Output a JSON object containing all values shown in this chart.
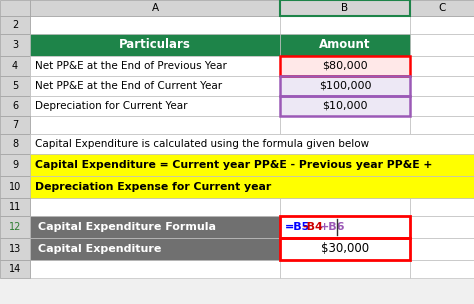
{
  "fig_width": 4.74,
  "fig_height": 3.04,
  "dpi": 100,
  "bg_color": "#f0f0f0",
  "col_header_bg": "#1e8449",
  "col_header_text": "#ffffff",
  "row_label_bg": "#707070",
  "row_label_text": "#ffffff",
  "yellow_bg": "#ffff00",
  "normal_bg": "#ffffff",
  "grid_color": "#c0c0c0",
  "excel_header_bg": "#d4d4d4",
  "excel_header_text": "#000000",
  "red_border": "#ff0000",
  "purple_border": "#9b59b6",
  "green_header": "#1e8449",
  "pink_bg": "#ffe8e8",
  "lavender_bg": "#ede8f5",
  "header_row": {
    "particulars": "Particulars",
    "amount": "Amount"
  },
  "desc_text": "Capital Expenditure is calculated using the formula given below",
  "formula_line1": "Capital Expenditure = Current year PP&E - Previous year PP&E +",
  "formula_line2": "Depreciation Expense for Current year",
  "formula_parts": [
    [
      "=B5",
      "blue"
    ],
    [
      "-B4",
      "#cc0000"
    ],
    [
      "+B6",
      "#9b59b6"
    ]
  ],
  "rows": {
    "first": 2,
    "last": 14,
    "header_row": 3,
    "data_rows": [
      4,
      5,
      6
    ],
    "blank_rows": [
      2,
      7,
      11
    ],
    "desc_row": 8,
    "formula_rows": [
      9,
      10
    ],
    "blank2_row": 11,
    "calc_rows": [
      12,
      13
    ]
  },
  "row_labels": {
    "4": "Net PP&E at the End of Previous Year",
    "5": "Net PP&E at the End of Current Year",
    "6": "Depreciation for Current Year",
    "8": "Capital Expenditure is calculated using the formula given below",
    "12": "Capital Expenditure Formula",
    "13": "Capital Expenditure"
  },
  "amounts": {
    "4": "$80,000",
    "5": "$100,000",
    "6": "$10,000",
    "13": "$30,000"
  }
}
